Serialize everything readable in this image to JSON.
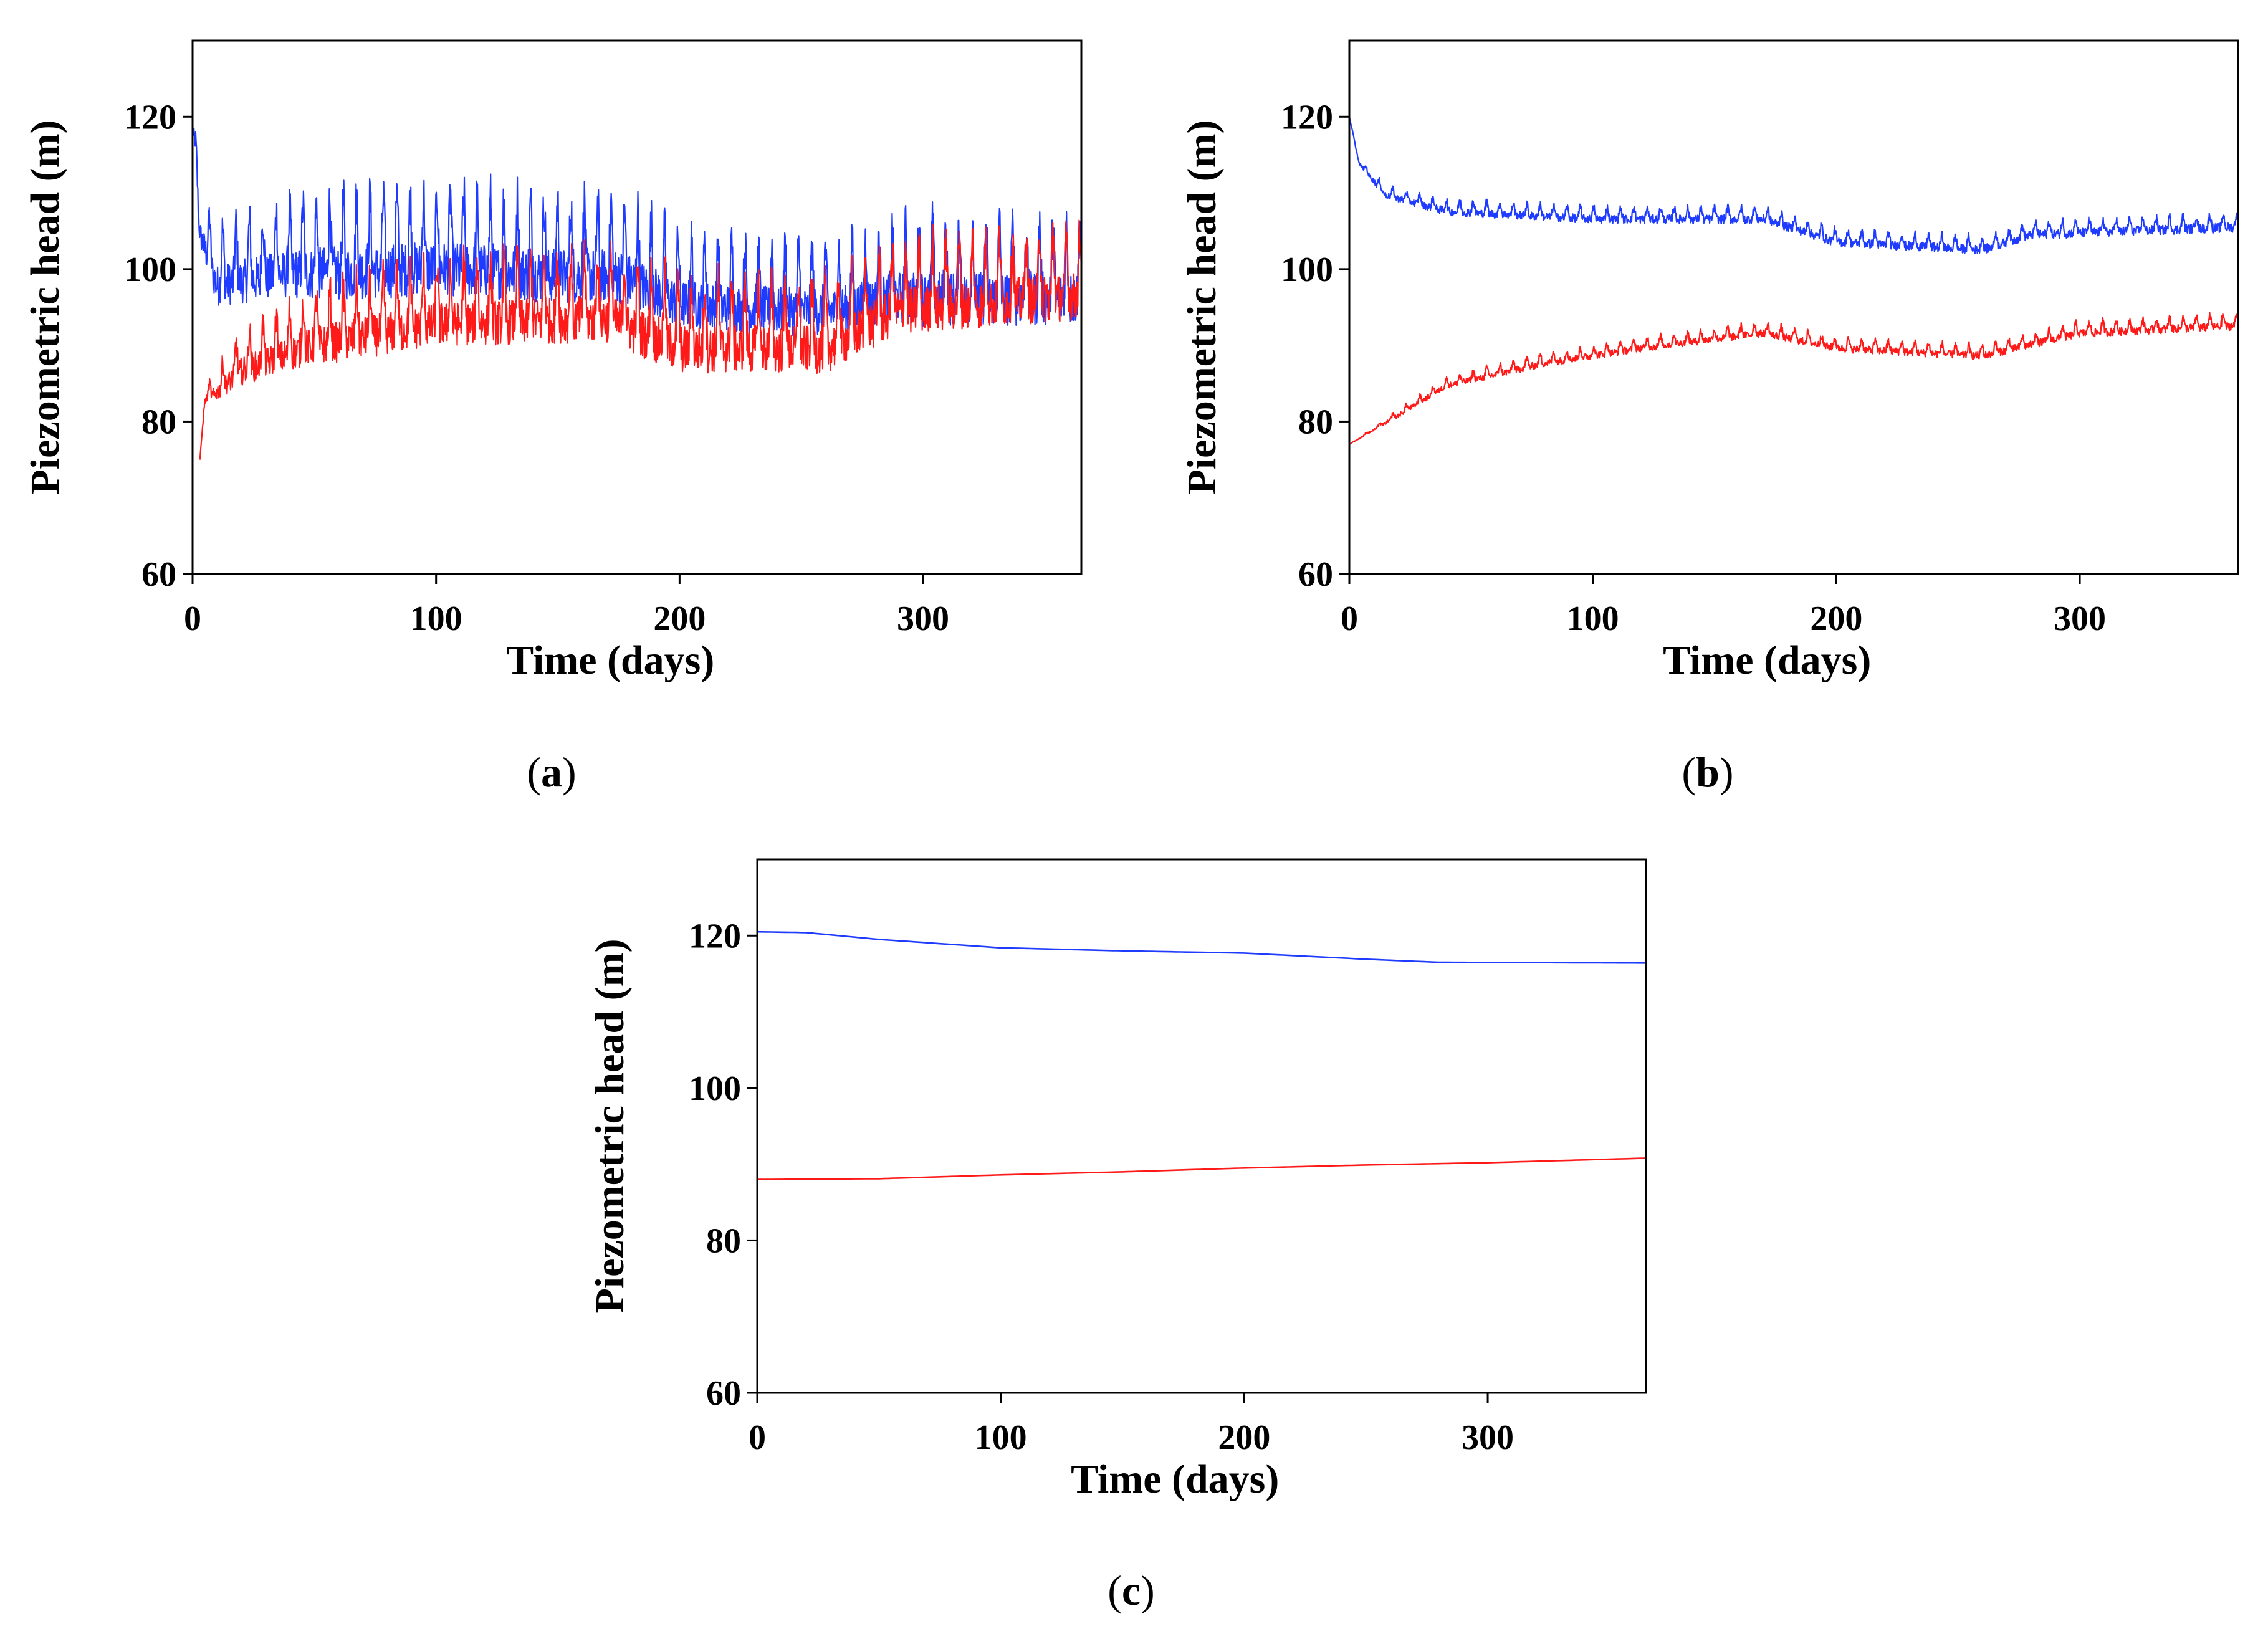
{
  "chart_data": [
    {
      "type": "line",
      "panel_label": "a",
      "xlabel": "Time (days)",
      "ylabel": "Piezometric head (m)",
      "xlim": [
        0,
        365
      ],
      "ylim": [
        60,
        130
      ],
      "xticks": [
        0,
        100,
        200,
        300
      ],
      "yticks": [
        60,
        80,
        100,
        120
      ],
      "grid": false,
      "series": [
        {
          "name": "blue",
          "color": "#1f3bff",
          "kind": "oscillating",
          "period_days": 5.5,
          "base": [
            [
              0,
              120
            ],
            [
              3,
              106
            ],
            [
              10,
              100
            ],
            [
              40,
              102
            ],
            [
              100,
              103
            ],
            [
              150,
              102
            ],
            [
              175,
              102
            ],
            [
              200,
              98
            ],
            [
              240,
              97
            ],
            [
              265,
              97
            ],
            [
              290,
              99
            ],
            [
              365,
              99
            ]
          ],
          "amplitude": [
            [
              0,
              3
            ],
            [
              10,
              6
            ],
            [
              60,
              8
            ],
            [
              180,
              8
            ],
            [
              200,
              7
            ],
            [
              280,
              7
            ],
            [
              300,
              8
            ],
            [
              365,
              8
            ]
          ]
        },
        {
          "name": "red",
          "color": "#ff1a1a",
          "kind": "oscillating",
          "period_days": 5.5,
          "base": [
            [
              3,
              75
            ],
            [
              5,
              83
            ],
            [
              20,
              88
            ],
            [
              50,
              92
            ],
            [
              100,
              95
            ],
            [
              170,
              96
            ],
            [
              200,
              92
            ],
            [
              260,
              92
            ],
            [
              290,
              97
            ],
            [
              365,
              99
            ]
          ],
          "amplitude": [
            [
              3,
              0
            ],
            [
              8,
              2
            ],
            [
              20,
              4
            ],
            [
              60,
              6
            ],
            [
              180,
              7
            ],
            [
              280,
              7
            ],
            [
              365,
              7
            ]
          ]
        }
      ]
    },
    {
      "type": "line",
      "panel_label": "b",
      "xlabel": "Time (days)",
      "ylabel": "Piezometric head (m)",
      "xlim": [
        0,
        365
      ],
      "ylim": [
        60,
        130
      ],
      "xticks": [
        0,
        100,
        200,
        300
      ],
      "yticks": [
        60,
        80,
        100,
        120
      ],
      "grid": false,
      "series": [
        {
          "name": "blue",
          "color": "#1f3bff",
          "kind": "oscillating",
          "period_days": 5.5,
          "base": [
            [
              0,
              120
            ],
            [
              4,
              114
            ],
            [
              15,
              110
            ],
            [
              40,
              108
            ],
            [
              100,
              107
            ],
            [
              170,
              107
            ],
            [
              200,
              104
            ],
            [
              260,
              103
            ],
            [
              280,
              105
            ],
            [
              365,
              106
            ]
          ],
          "amplitude": [
            [
              0,
              0
            ],
            [
              10,
              0.8
            ],
            [
              40,
              1.2
            ],
            [
              365,
              1.4
            ]
          ]
        },
        {
          "name": "red",
          "color": "#ff1a1a",
          "kind": "oscillating",
          "period_days": 5.5,
          "base": [
            [
              0,
              77
            ],
            [
              20,
              81
            ],
            [
              40,
              85
            ],
            [
              80,
              88
            ],
            [
              120,
              90
            ],
            [
              170,
              92
            ],
            [
              200,
              90
            ],
            [
              260,
              89
            ],
            [
              300,
              92
            ],
            [
              365,
              93
            ]
          ],
          "amplitude": [
            [
              0,
              0
            ],
            [
              20,
              0.6
            ],
            [
              60,
              1
            ],
            [
              365,
              1.2
            ]
          ]
        }
      ]
    },
    {
      "type": "line",
      "panel_label": "c",
      "xlabel": "Time (days)",
      "ylabel": "Piezometric head (m)",
      "xlim": [
        0,
        365
      ],
      "ylim": [
        60,
        130
      ],
      "xticks": [
        0,
        100,
        200,
        300
      ],
      "yticks": [
        60,
        80,
        100,
        120
      ],
      "grid": false,
      "series": [
        {
          "name": "blue",
          "color": "#1f3bff",
          "kind": "smooth",
          "points": [
            [
              0,
              120.5
            ],
            [
              20,
              120.4
            ],
            [
              50,
              119.5
            ],
            [
              100,
              118.4
            ],
            [
              150,
              118
            ],
            [
              200,
              117.7
            ],
            [
              250,
              116.9
            ],
            [
              280,
              116.5
            ],
            [
              365,
              116.4
            ]
          ]
        },
        {
          "name": "red",
          "color": "#ff1a1a",
          "kind": "smooth",
          "points": [
            [
              0,
              88
            ],
            [
              50,
              88.1
            ],
            [
              100,
              88.6
            ],
            [
              150,
              89
            ],
            [
              200,
              89.5
            ],
            [
              250,
              89.9
            ],
            [
              300,
              90.2
            ],
            [
              365,
              90.8
            ]
          ]
        }
      ]
    }
  ]
}
